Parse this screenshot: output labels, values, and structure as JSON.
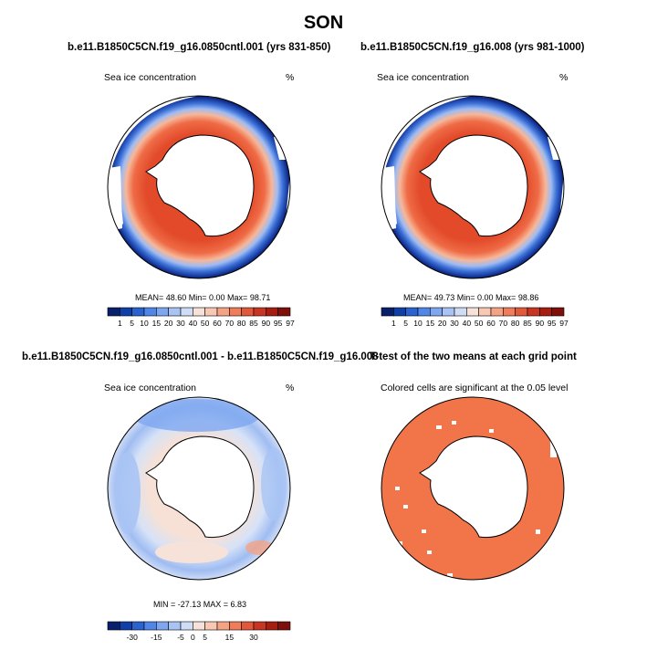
{
  "page_title": "SON",
  "colors": {
    "cmap_conc": [
      "#08206b",
      "#123fa6",
      "#2a62cf",
      "#4f86e8",
      "#7ea7f0",
      "#a9c4f4",
      "#cfdcf6",
      "#f6e2d8",
      "#f8c8b2",
      "#f5a385",
      "#ef7d5c",
      "#e2583a",
      "#c83623",
      "#a61d12",
      "#7e0f0a"
    ],
    "cmap_diff": [
      "#08206b",
      "#123fa6",
      "#2a62cf",
      "#4f86e8",
      "#7ea7f0",
      "#a9c4f4",
      "#cfdcf6",
      "#f6e2d8",
      "#f8c8b2",
      "#f5a385",
      "#ef7d5c",
      "#e2583a",
      "#c83623",
      "#a61d12",
      "#7e0f0a"
    ],
    "significant": "#f2754a"
  },
  "chart_data": [
    {
      "type": "heatmap",
      "panel": "top-left",
      "title": "b.e11.B1850C5CN.f19_g16.0850cntl.001 (yrs 831-850)",
      "left_label": "Sea ice concentration",
      "right_label": "%",
      "stats": {
        "mean": "48.60",
        "min": "0.00",
        "max": "98.71"
      },
      "stats_text": "MEAN=  48.60  Min=   0.00  Max=  98.71",
      "colorbar_labels": [
        "1",
        "5",
        "10",
        "15",
        "20",
        "30",
        "40",
        "50",
        "60",
        "70",
        "80",
        "85",
        "90",
        "95",
        "97"
      ]
    },
    {
      "type": "heatmap",
      "panel": "top-right",
      "title": "b.e11.B1850C5CN.f19_g16.008 (yrs 981-1000)",
      "left_label": "Sea ice concentration",
      "right_label": "%",
      "stats": {
        "mean": "49.73",
        "min": "0.00",
        "max": "98.86"
      },
      "stats_text": "MEAN=  49.73  Min=   0.00  Max=  98.86",
      "colorbar_labels": [
        "1",
        "5",
        "10",
        "15",
        "20",
        "30",
        "40",
        "50",
        "60",
        "70",
        "80",
        "85",
        "90",
        "95",
        "97"
      ]
    },
    {
      "type": "heatmap",
      "panel": "bottom-left",
      "title": "b.e11.B1850C5CN.f19_g16.0850cntl.001 - b.e11.B1850C5CN.f19_g16.008",
      "left_label": "Sea ice concentration",
      "right_label": "%",
      "stats": {
        "min": "-27.13",
        "max": "6.83"
      },
      "stats_text": "MIN = -27.13 MAX =   6.83",
      "colorbar_labels": [
        "-30",
        "-15",
        "-5",
        "0",
        "5",
        "15",
        "30"
      ]
    },
    {
      "type": "heatmap",
      "panel": "bottom-right",
      "title": "T-test of the two means at each grid point",
      "subtitle": "Colored cells are significant at the 0.05 level"
    }
  ]
}
